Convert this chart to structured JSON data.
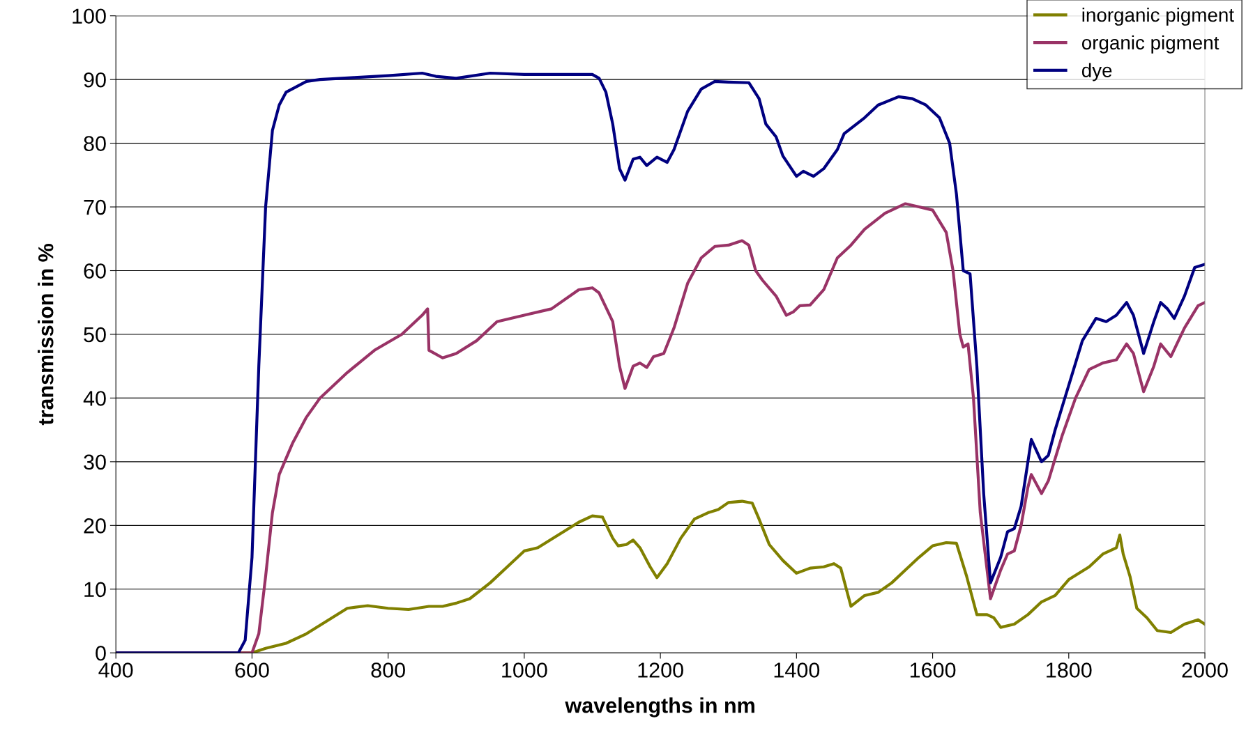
{
  "chart_data": {
    "type": "line",
    "xlabel": "wavelengths in nm",
    "ylabel": "transmission in %",
    "xlim": [
      400,
      2000
    ],
    "ylim": [
      0,
      100
    ],
    "xticks": [
      400,
      600,
      800,
      1000,
      1200,
      1400,
      1600,
      1800,
      2000
    ],
    "yticks": [
      0,
      10,
      20,
      30,
      40,
      50,
      60,
      70,
      80,
      90,
      100
    ],
    "grid": "y",
    "legend": "top right",
    "marker": "none",
    "line_style": "solid",
    "series": [
      {
        "name": "inorganic pigment",
        "color": "#808000",
        "x": [
          400,
          600,
          620,
          650,
          680,
          710,
          740,
          770,
          800,
          830,
          860,
          880,
          900,
          920,
          950,
          980,
          1000,
          1020,
          1050,
          1080,
          1100,
          1115,
          1130,
          1138,
          1150,
          1160,
          1170,
          1185,
          1195,
          1210,
          1230,
          1250,
          1270,
          1285,
          1300,
          1320,
          1335,
          1345,
          1360,
          1380,
          1400,
          1420,
          1440,
          1455,
          1465,
          1480,
          1500,
          1520,
          1540,
          1560,
          1580,
          1600,
          1620,
          1635,
          1650,
          1665,
          1680,
          1690,
          1700,
          1720,
          1740,
          1760,
          1780,
          1800,
          1830,
          1850,
          1870,
          1875,
          1880,
          1890,
          1900,
          1915,
          1930,
          1950,
          1970,
          1990,
          2000
        ],
        "values": [
          0,
          0,
          0.7,
          1.5,
          3,
          5,
          7,
          7.4,
          7,
          6.8,
          7.3,
          7.3,
          7.8,
          8.5,
          11,
          14,
          16,
          16.5,
          18.5,
          20.5,
          21.5,
          21.3,
          18,
          16.8,
          17,
          17.7,
          16.5,
          13.5,
          11.8,
          14,
          18,
          21,
          22,
          22.5,
          23.6,
          23.8,
          23.5,
          21,
          17,
          14.5,
          12.5,
          13.3,
          13.5,
          14,
          13.3,
          7.3,
          9,
          9.5,
          11,
          13,
          15,
          16.8,
          17.3,
          17.2,
          12,
          6,
          6,
          5.5,
          4,
          4.5,
          6,
          8,
          9,
          11.5,
          13.5,
          15.5,
          16.5,
          18.5,
          15.5,
          12,
          7,
          5.5,
          3.5,
          3.2,
          4.5,
          5.2,
          4.5
        ]
      },
      {
        "name": "organic pigment",
        "color": "#993366",
        "x": [
          400,
          600,
          610,
          620,
          630,
          640,
          660,
          680,
          700,
          740,
          780,
          820,
          850,
          858,
          860,
          880,
          900,
          930,
          960,
          1000,
          1040,
          1080,
          1100,
          1110,
          1130,
          1140,
          1148,
          1160,
          1170,
          1180,
          1190,
          1205,
          1220,
          1240,
          1260,
          1280,
          1300,
          1320,
          1330,
          1340,
          1350,
          1370,
          1385,
          1395,
          1405,
          1420,
          1440,
          1460,
          1480,
          1500,
          1530,
          1560,
          1580,
          1600,
          1620,
          1630,
          1640,
          1645,
          1652,
          1660,
          1670,
          1685,
          1700,
          1710,
          1720,
          1730,
          1740,
          1745,
          1760,
          1770,
          1790,
          1810,
          1830,
          1850,
          1870,
          1885,
          1895,
          1910,
          1925,
          1935,
          1950,
          1970,
          1990,
          2000
        ],
        "values": [
          0,
          0,
          3,
          12,
          22,
          28,
          33,
          37,
          40,
          44,
          47.5,
          50,
          53,
          54,
          47.5,
          46.3,
          47,
          49,
          52,
          53,
          54,
          57,
          57.3,
          56.5,
          52,
          45,
          41.5,
          45,
          45.5,
          44.8,
          46.5,
          47,
          51,
          58,
          62,
          63.8,
          64,
          64.7,
          64,
          60,
          58.5,
          56,
          53,
          53.5,
          54.5,
          54.6,
          57,
          62,
          64,
          66.5,
          69,
          70.5,
          70,
          69.5,
          66,
          60,
          50,
          48,
          48.5,
          40,
          22,
          8.5,
          13,
          15.5,
          16,
          20,
          26,
          28,
          25,
          27,
          34,
          40,
          44.5,
          45.5,
          46,
          48.5,
          47,
          41,
          45,
          48.5,
          46.5,
          51,
          54.5,
          55
        ]
      },
      {
        "name": "dye",
        "color": "#000080",
        "x": [
          400,
          580,
          590,
          600,
          610,
          620,
          630,
          640,
          650,
          680,
          700,
          750,
          800,
          850,
          870,
          900,
          950,
          1000,
          1050,
          1100,
          1110,
          1120,
          1130,
          1140,
          1148,
          1160,
          1170,
          1180,
          1195,
          1210,
          1220,
          1240,
          1260,
          1280,
          1300,
          1330,
          1345,
          1355,
          1370,
          1380,
          1400,
          1410,
          1425,
          1440,
          1460,
          1470,
          1500,
          1520,
          1550,
          1570,
          1590,
          1610,
          1625,
          1635,
          1645,
          1655,
          1665,
          1675,
          1685,
          1700,
          1710,
          1720,
          1730,
          1740,
          1745,
          1760,
          1770,
          1780,
          1800,
          1820,
          1840,
          1855,
          1870,
          1885,
          1895,
          1910,
          1925,
          1935,
          1945,
          1955,
          1970,
          1985,
          2000
        ],
        "values": [
          0,
          0,
          2,
          15,
          45,
          70,
          82,
          86,
          88,
          89.7,
          90,
          90.3,
          90.6,
          91,
          90.5,
          90.2,
          91,
          90.8,
          90.8,
          90.8,
          90.2,
          88,
          83,
          76,
          74.2,
          77.5,
          77.8,
          76.5,
          77.8,
          77,
          79,
          85,
          88.5,
          89.7,
          89.6,
          89.5,
          87,
          83,
          81,
          78,
          74.8,
          75.6,
          74.8,
          76,
          79,
          81.5,
          84,
          86,
          87.3,
          87,
          86,
          84,
          80,
          72,
          60,
          59.5,
          45,
          25,
          11,
          15,
          19,
          19.5,
          23,
          30,
          33.5,
          30,
          31,
          35,
          42,
          49,
          52.5,
          52,
          53,
          55,
          53,
          47,
          52,
          55,
          54,
          52.5,
          56,
          60.5,
          61
        ]
      }
    ]
  }
}
